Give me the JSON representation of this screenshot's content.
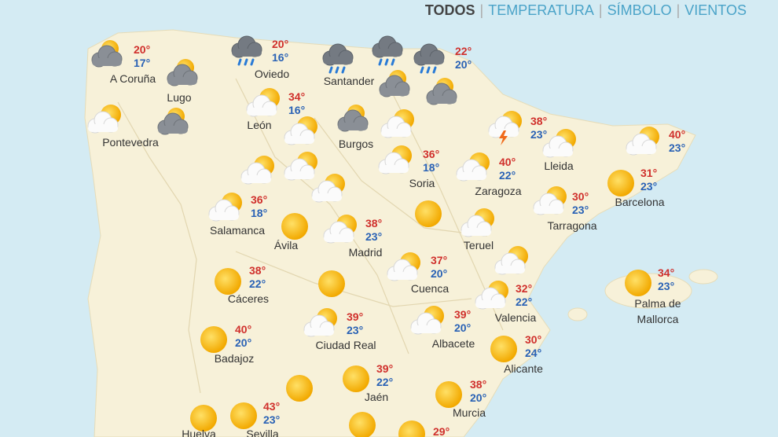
{
  "tabs": [
    "TODOS",
    "TEMPERATURA",
    "SÍMBOLO",
    "VIENTOS"
  ],
  "cities": [
    {
      "name": "A Coruña",
      "max": "20°",
      "min": "17°"
    },
    {
      "name": "Lugo"
    },
    {
      "name": "Pontevedra"
    },
    {
      "name": "Oviedo",
      "max": "20°",
      "min": "16°"
    },
    {
      "name": "Santander"
    },
    {
      "max": "22°",
      "min": "20°"
    },
    {
      "name": "León",
      "max": "34°",
      "min": "16°"
    },
    {
      "name": "Burgos"
    },
    {
      "max": "38°",
      "min": "23°"
    },
    {
      "name": "Lleida"
    },
    {
      "max": "40°",
      "min": "23°"
    },
    {
      "name": "Soria",
      "max": "36°",
      "min": "18°"
    },
    {
      "name": "Zaragoza",
      "max": "40°",
      "min": "22°"
    },
    {
      "name": "Barcelona",
      "max": "31°",
      "min": "23°"
    },
    {
      "name": "Tarragona",
      "max": "30°",
      "min": "23°"
    },
    {
      "name": "Salamanca",
      "max": "36°",
      "min": "18°"
    },
    {
      "name": "Ávila"
    },
    {
      "name": "Madrid",
      "max": "38°",
      "min": "23°"
    },
    {
      "name": "Teruel"
    },
    {
      "name": "Cáceres",
      "max": "38°",
      "min": "22°"
    },
    {
      "name": "Cuenca",
      "max": "37°",
      "min": "20°"
    },
    {
      "name": "Palma de Mallorca",
      "max": "34°",
      "min": "23°"
    },
    {
      "name": "Valencia",
      "max": "32°",
      "min": "22°"
    },
    {
      "name": "Badajoz",
      "max": "40°",
      "min": "20°"
    },
    {
      "name": "Ciudad Real",
      "max": "39°",
      "min": "23°"
    },
    {
      "name": "Albacete",
      "max": "39°",
      "min": "20°"
    },
    {
      "name": "Alicante",
      "max": "30°",
      "min": "24°"
    },
    {
      "name": "Jaén",
      "max": "39°",
      "min": "22°"
    },
    {
      "name": "Murcia",
      "max": "38°",
      "min": "20°"
    },
    {
      "name": "Sevilla",
      "max": "43°",
      "min": "23°"
    },
    {
      "name": "Huelva"
    },
    {
      "max": "29°"
    }
  ]
}
